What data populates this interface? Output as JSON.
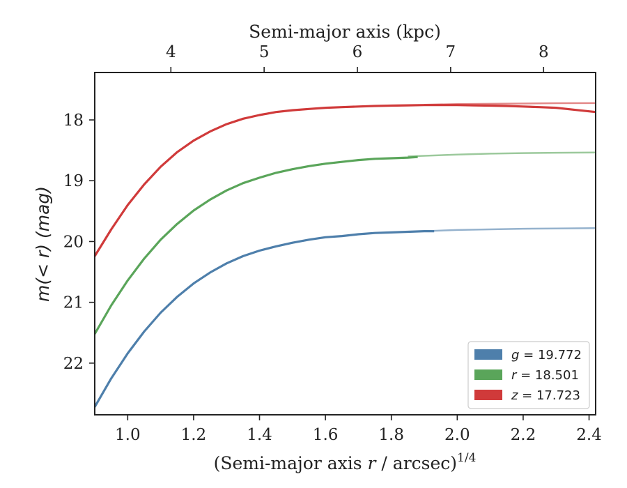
{
  "chart_data": {
    "type": "line",
    "xlabel_main": "(Semi-major axis ",
    "xlabel_r": "r",
    "xlabel_tail": " / arcsec)",
    "xlabel_sup": "1/4",
    "top_xlabel": "Semi-major axis (kpc)",
    "ylabel": "m(< r) (mag)",
    "xlim": [
      0.9,
      2.42
    ],
    "ylim": [
      22.85,
      17.22
    ],
    "y_inverted": true,
    "x_ticks": [
      1.0,
      1.2,
      1.4,
      1.6,
      1.8,
      2.0,
      2.2,
      2.4
    ],
    "x_tick_labels": [
      "1.0",
      "1.2",
      "1.4",
      "1.6",
      "1.8",
      "2.0",
      "2.2",
      "2.4"
    ],
    "y_ticks": [
      18,
      19,
      20,
      21,
      22
    ],
    "y_tick_labels": [
      "18",
      "19",
      "20",
      "21",
      "22"
    ],
    "top_ticks_kpc": [
      4,
      5,
      6,
      7,
      8
    ],
    "top_tick_labels": [
      "4",
      "5",
      "6",
      "7",
      "8"
    ],
    "top_tick_positions_x": [
      1.131,
      1.414,
      1.697,
      1.98,
      2.262
    ],
    "legend_position": "lower right",
    "series": [
      {
        "name": "g = 19.772",
        "legend_var": "g",
        "legend_value": "= 19.772",
        "color": "#4e7fab",
        "x": [
          0.9,
          0.95,
          1.0,
          1.05,
          1.1,
          1.15,
          1.2,
          1.25,
          1.3,
          1.35,
          1.4,
          1.45,
          1.5,
          1.55,
          1.6,
          1.65,
          1.7,
          1.75,
          1.8,
          1.85,
          1.9,
          1.93
        ],
        "y": [
          22.72,
          22.25,
          21.84,
          21.48,
          21.17,
          20.91,
          20.69,
          20.51,
          20.36,
          20.24,
          20.15,
          20.08,
          20.02,
          19.97,
          19.93,
          19.91,
          19.88,
          19.86,
          19.85,
          19.84,
          19.83,
          19.83
        ],
        "model_x": [
          1.9,
          2.0,
          2.1,
          2.2,
          2.3,
          2.42
        ],
        "model_y": [
          19.83,
          19.81,
          19.8,
          19.79,
          19.785,
          19.78
        ]
      },
      {
        "name": "r = 18.501",
        "legend_var": "r",
        "legend_value": "= 18.501",
        "color": "#5aa55a",
        "x": [
          0.9,
          0.95,
          1.0,
          1.05,
          1.1,
          1.15,
          1.2,
          1.25,
          1.3,
          1.35,
          1.4,
          1.45,
          1.5,
          1.55,
          1.6,
          1.65,
          1.7,
          1.75,
          1.8,
          1.85,
          1.88
        ],
        "y": [
          21.52,
          21.05,
          20.64,
          20.28,
          19.97,
          19.71,
          19.49,
          19.31,
          19.16,
          19.04,
          18.95,
          18.87,
          18.81,
          18.76,
          18.72,
          18.69,
          18.66,
          18.64,
          18.63,
          18.62,
          18.61
        ],
        "model_x": [
          1.85,
          1.9,
          2.0,
          2.1,
          2.2,
          2.3,
          2.42
        ],
        "model_y": [
          18.6,
          18.59,
          18.57,
          18.555,
          18.545,
          18.54,
          18.535
        ]
      },
      {
        "name": "z = 17.723",
        "legend_var": "z",
        "legend_value": "= 17.723",
        "color": "#d03a3a",
        "x": [
          0.9,
          0.95,
          1.0,
          1.05,
          1.1,
          1.15,
          1.2,
          1.25,
          1.3,
          1.35,
          1.4,
          1.45,
          1.5,
          1.55,
          1.6,
          1.65,
          1.7,
          1.75,
          1.8,
          1.85,
          1.9,
          1.95,
          2.0,
          2.05,
          2.1,
          2.15,
          2.2,
          2.25,
          2.3,
          2.35,
          2.42
        ],
        "y": [
          20.24,
          19.8,
          19.4,
          19.06,
          18.77,
          18.53,
          18.34,
          18.19,
          18.07,
          17.98,
          17.92,
          17.87,
          17.84,
          17.82,
          17.8,
          17.79,
          17.78,
          17.77,
          17.765,
          17.76,
          17.755,
          17.755,
          17.755,
          17.76,
          17.765,
          17.77,
          17.78,
          17.79,
          17.8,
          17.83,
          17.87
        ],
        "model_x": [
          1.9,
          2.0,
          2.1,
          2.2,
          2.3,
          2.42
        ],
        "model_y": [
          17.75,
          17.74,
          17.735,
          17.73,
          17.725,
          17.723
        ]
      }
    ]
  }
}
